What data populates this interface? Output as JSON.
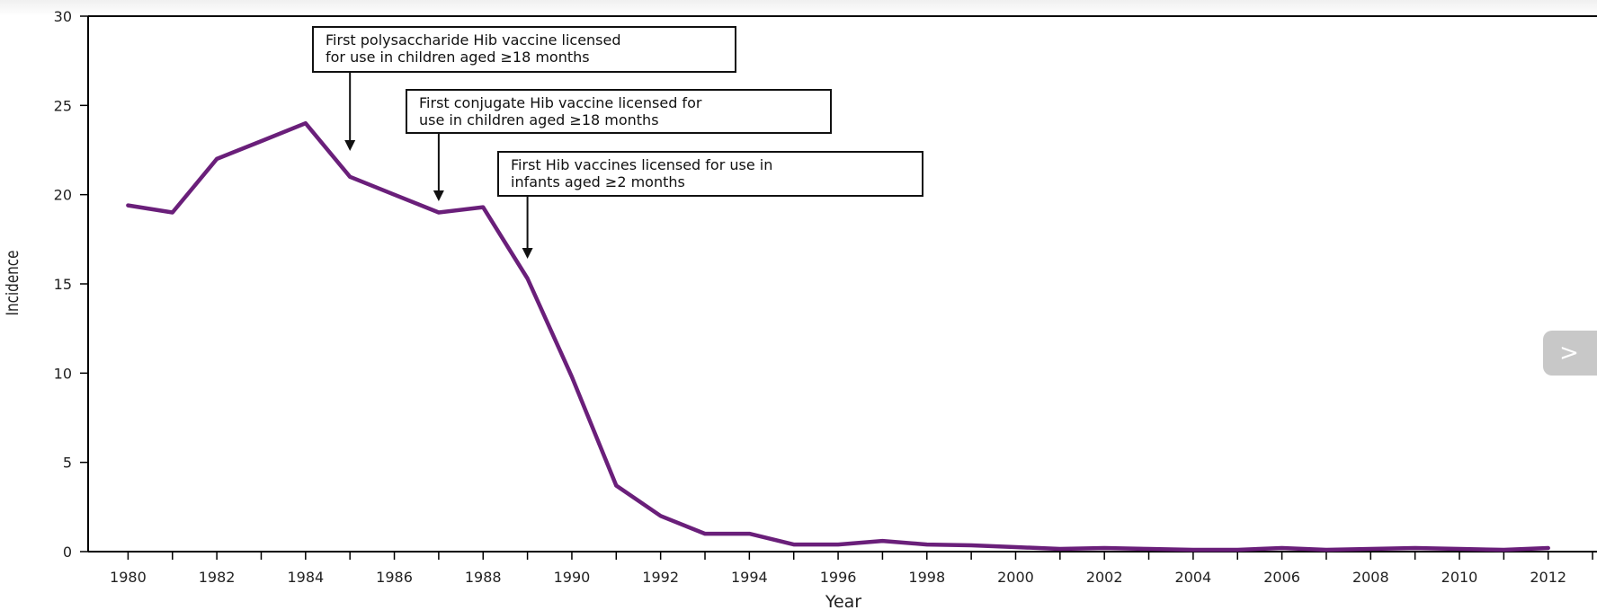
{
  "chart_data": {
    "type": "line",
    "title": "",
    "xlabel": "Year",
    "ylabel": "Incidence",
    "xlim": [
      1979.1,
      2013.1
    ],
    "ylim": [
      0,
      30
    ],
    "x_ticks": [
      1980,
      1982,
      1984,
      1986,
      1988,
      1990,
      1992,
      1994,
      1996,
      1998,
      2000,
      2002,
      2004,
      2006,
      2008,
      2010,
      2012
    ],
    "y_ticks": [
      0,
      5,
      10,
      15,
      20,
      25,
      30
    ],
    "grid": false,
    "series": [
      {
        "color": "#6a1f7a",
        "x": [
          1980,
          1981,
          1982,
          1983,
          1984,
          1985,
          1986,
          1987,
          1988,
          1989,
          1990,
          1991,
          1992,
          1993,
          1994,
          1995,
          1996,
          1997,
          1998,
          1999,
          2000,
          2001,
          2002,
          2003,
          2004,
          2005,
          2006,
          2007,
          2008,
          2009,
          2010,
          2011,
          2012
        ],
        "y": [
          19.4,
          19.0,
          22.0,
          23.0,
          24.0,
          21.0,
          20.0,
          19.0,
          19.3,
          15.3,
          9.8,
          3.7,
          2.0,
          1.0,
          1.0,
          0.4,
          0.4,
          0.6,
          0.4,
          0.35,
          0.25,
          0.15,
          0.2,
          0.15,
          0.1,
          0.1,
          0.2,
          0.1,
          0.15,
          0.2,
          0.15,
          0.1,
          0.2
        ]
      }
    ],
    "annotations": [
      {
        "lines": [
          "First polysaccharide Hib vaccine licensed",
          "for use in children aged ≥18 months"
        ],
        "year": 1985
      },
      {
        "lines": [
          "First conjugate Hib vaccine licensed for",
          "use in children aged ≥18 months"
        ],
        "year": 1987
      },
      {
        "lines": [
          "First Hib vaccines licensed for use in",
          "infants aged ≥2 months"
        ],
        "year": 1989
      }
    ]
  },
  "nav": {
    "next_glyph": ">"
  }
}
